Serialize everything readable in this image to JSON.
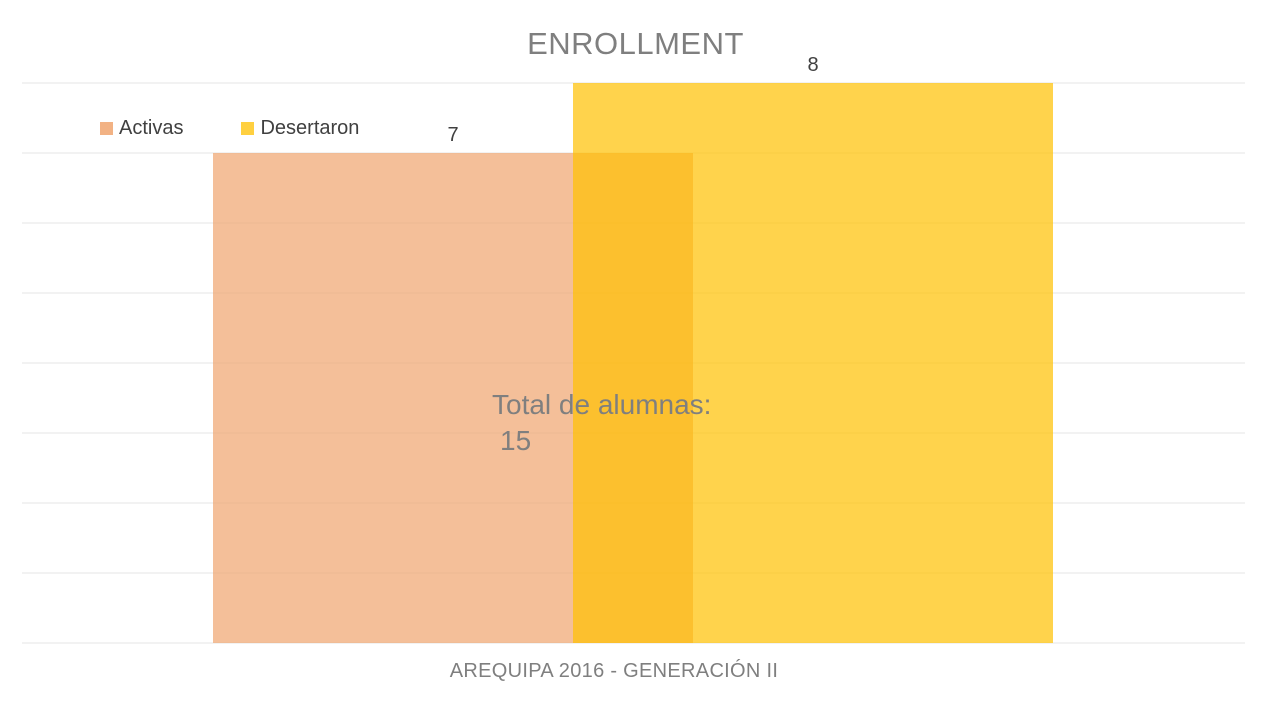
{
  "chart_data": {
    "type": "bar",
    "title": "ENROLLMENT",
    "categories": [
      "AREQUIPA 2016 - GENERACIÓN II"
    ],
    "series": [
      {
        "name": "Activas",
        "values": [
          7
        ],
        "color": "#F0A46E"
      },
      {
        "name": "Desertaron",
        "values": [
          8
        ],
        "color": "#FFC000"
      }
    ],
    "data_labels": [
      "7",
      "8"
    ],
    "annotation": {
      "line1": "Total de alumnas:",
      "line2": "15"
    },
    "xlabel": "",
    "ylabel": "",
    "ylim": [
      0,
      8
    ],
    "grid": true,
    "legend_position": "top-left",
    "bars_overlap": true,
    "bar_opacity": 0.7
  }
}
